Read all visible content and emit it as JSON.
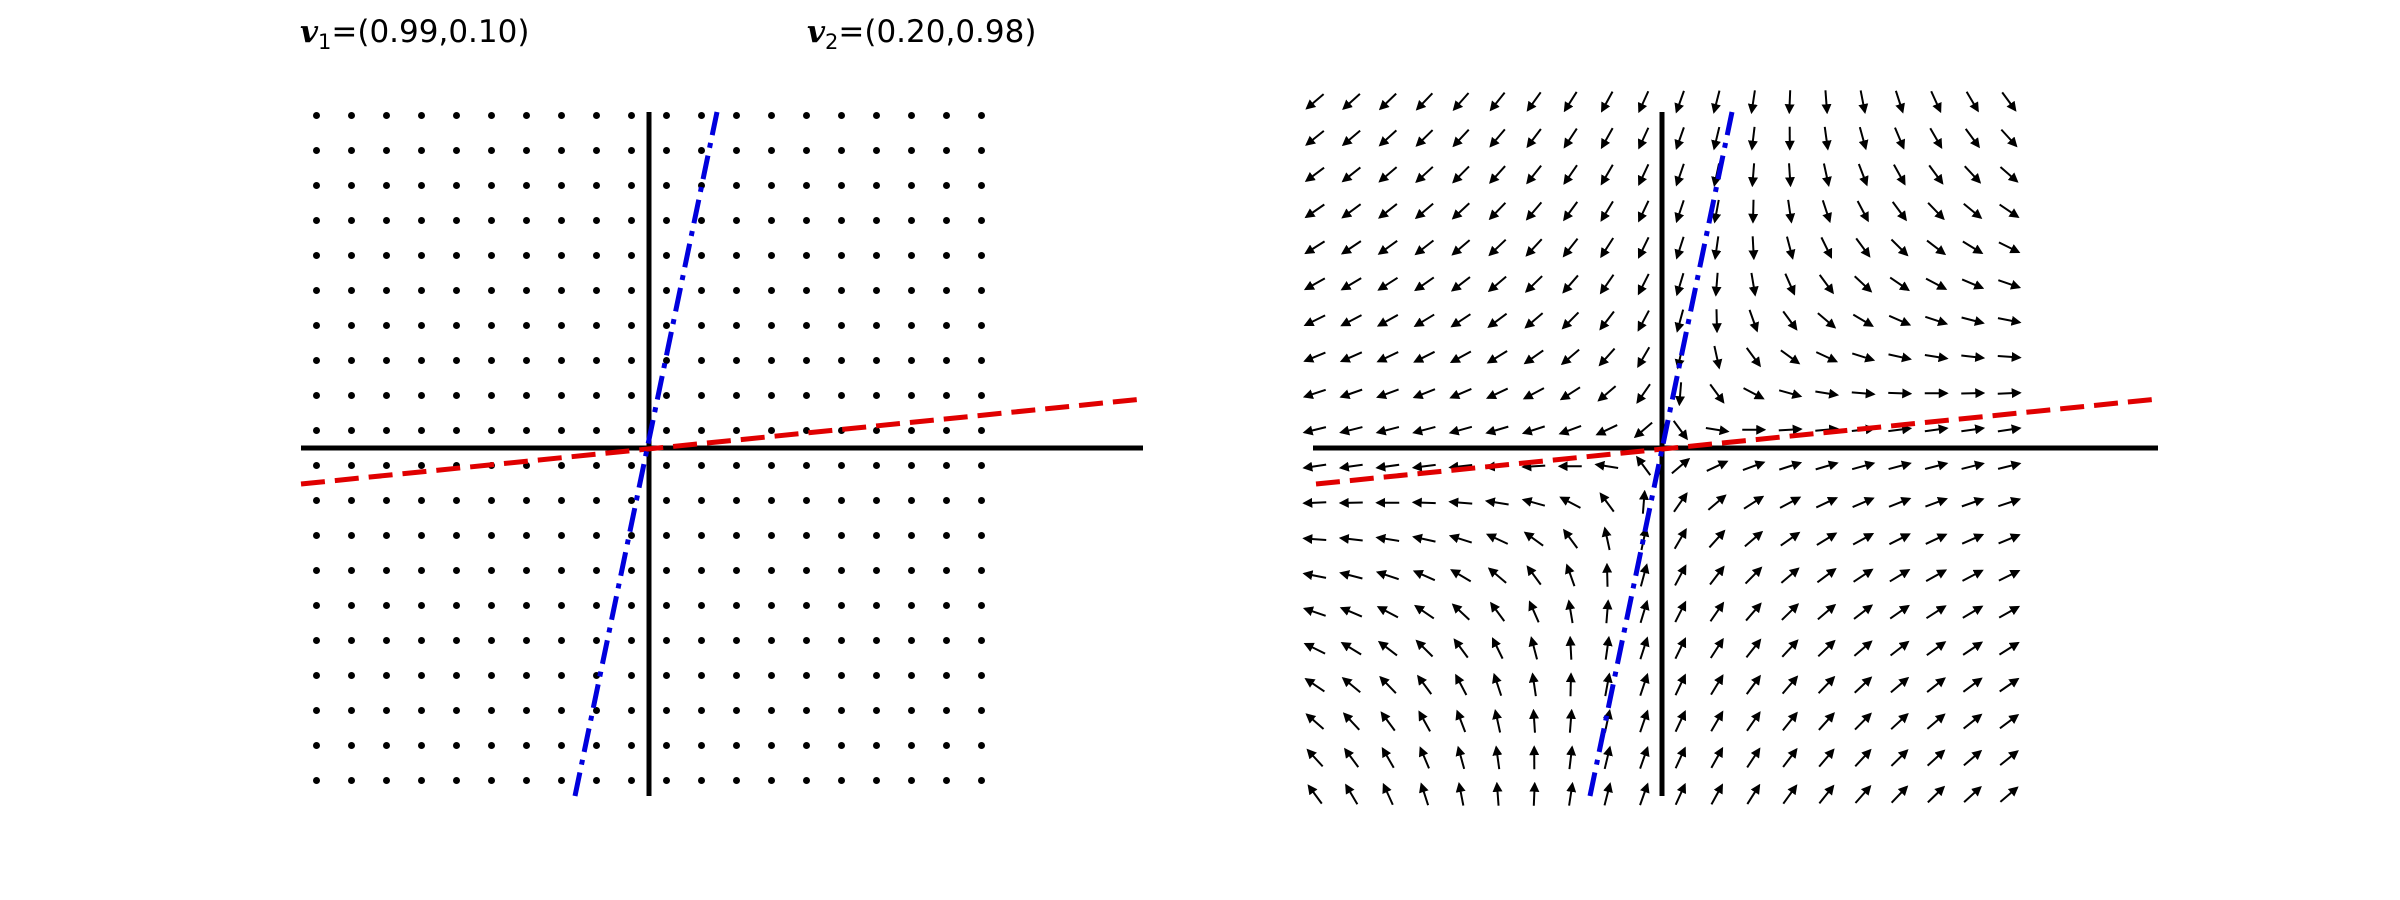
{
  "labels": [
    {
      "symbol": "v",
      "subscript": "1",
      "text": "=(0.99,0.10)"
    },
    {
      "symbol": "v",
      "subscript": "2",
      "text": "=(0.20,0.98)"
    }
  ]
}
